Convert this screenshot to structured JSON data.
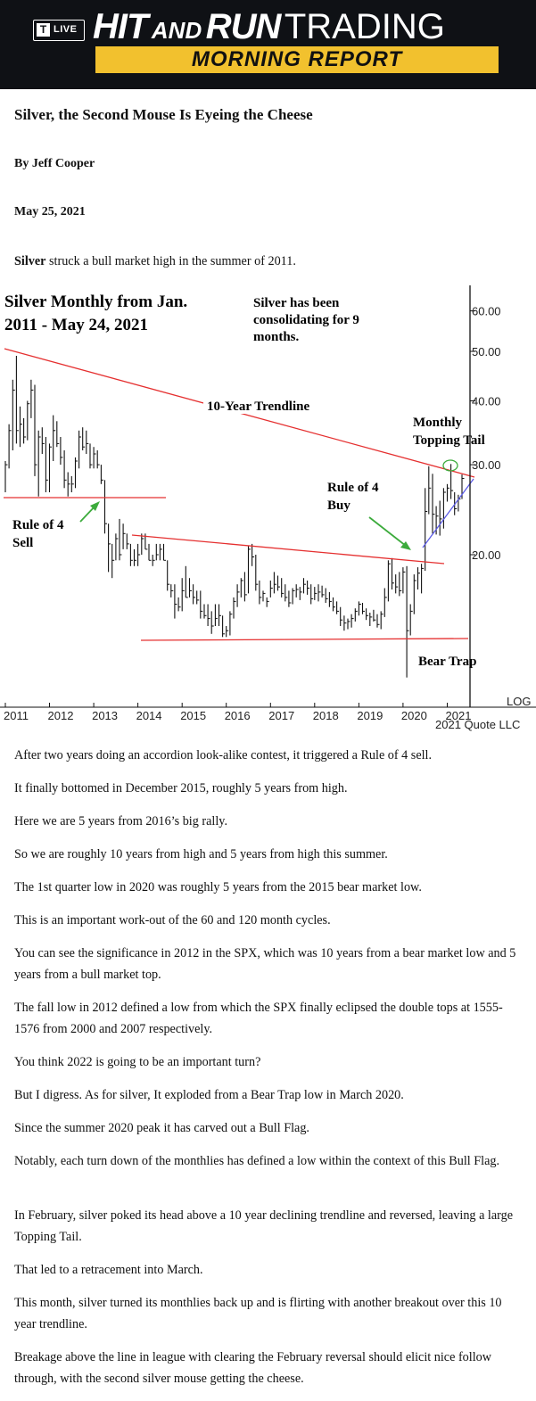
{
  "header": {
    "logo_mark": "T",
    "logo_live": "LIVE",
    "brand_hit": "HIT",
    "brand_and": "AND",
    "brand_run": "RUN",
    "brand_trading": "TRADING",
    "subtitle": "MORNING REPORT",
    "bg_color": "#0f1115",
    "accent_color": "#f2c12e"
  },
  "article": {
    "title": "Silver, the Second Mouse Is Eyeing the Cheese",
    "author": "By Jeff Cooper",
    "date": "May 25, 2021",
    "intro_bold": "Silver",
    "intro_rest": " struck a bull market high in the summer of 2011.",
    "paragraphs": [
      "After two years doing an accordion look-alike contest, it triggered a Rule of 4 sell.",
      "It finally bottomed in December 2015, roughly 5 years from high.",
      "Here we are 5 years from 2016’s big rally.",
      "So we are roughly 10 years from high and 5 years from high this summer.",
      "The 1st quarter low in 2020 was roughly 5 years from the 2015 bear market low.",
      "This is an important work-out of the 60 and 120 month cycles.",
      "You can see the significance in 2012 in the SPX, which was 10 years from a bear market low and 5 years from a bull market top.",
      "The fall low in 2012 defined a low from which the SPX finally eclipsed the double tops at 1555-1576 from 2000 and 2007 respectively.",
      "You think 2022 is going to be an important turn?",
      "But I digress. As for silver, It exploded from a Bear Trap low in March 2020.",
      "Since the summer 2020 peak it has carved out a Bull Flag.",
      "Notably, each turn down of the monthlies has defined a low within the context of this Bull Flag.",
      "In February, silver poked its head above a 10 year declining trendline and reversed, leaving a large Topping Tail.",
      "That led to a retracement into March.",
      "This month, silver turned its monthlies back up and is flirting with another breakout over this 10 year trendline.",
      "Breakage above the line in league with clearing the February reversal should elicit nice follow through, with the second silver mouse getting the cheese."
    ]
  },
  "chart_data": {
    "type": "bar",
    "title_line1": "Silver Monthly from Jan.",
    "title_line2": "2011 - May 24, 2021",
    "note_line1": "Silver has been",
    "note_line2": "consolidating for 9",
    "note_line3": "months.",
    "x_ticks": [
      "2011",
      "2012",
      "2013",
      "2014",
      "2015",
      "2016",
      "2017",
      "2018",
      "2019",
      "2020",
      "2021"
    ],
    "y_ticks": [
      "60.00",
      "50.00",
      "40.00",
      "30.00",
      "20.00"
    ],
    "y_values": [
      60,
      50,
      40,
      30,
      20
    ],
    "scale": "LOG",
    "source": "2021 Quote LLC",
    "annotations": {
      "trendline": "10-Year Trendline",
      "topping_tail_1": "Monthly",
      "topping_tail_2": "Topping Tail",
      "rule4_buy_1": "Rule of 4",
      "rule4_buy_2": "Buy",
      "rule4_sell_1": "Rule of 4",
      "rule4_sell_2": "Sell",
      "bear_trap": "Bear Trap"
    },
    "trendline_color": "#e53030",
    "flag_line_color": "#5a5ae6",
    "arrow_color": "#3cab3c",
    "bars": [
      [
        30.5,
        26.5,
        30
      ],
      [
        36,
        29.5,
        35
      ],
      [
        44,
        32,
        42
      ],
      [
        49,
        33,
        35
      ],
      [
        39,
        32.5,
        36
      ],
      [
        37,
        33,
        34
      ],
      [
        40,
        33.5,
        39.5
      ],
      [
        44,
        37,
        42
      ],
      [
        43,
        28.5,
        30
      ],
      [
        35,
        26,
        34
      ],
      [
        35.5,
        31.5,
        33
      ],
      [
        34,
        26.5,
        28
      ],
      [
        33,
        26.5,
        32.5
      ],
      [
        37.5,
        30.5,
        35
      ],
      [
        36.5,
        32.5,
        33
      ],
      [
        34,
        30,
        31
      ],
      [
        32,
        27,
        28
      ],
      [
        29,
        26,
        27.5
      ],
      [
        28.5,
        26.5,
        27.5
      ],
      [
        31,
        27,
        30.5
      ],
      [
        35,
        29.5,
        34
      ],
      [
        35.5,
        32,
        32.5
      ],
      [
        35,
        31.5,
        33
      ],
      [
        33,
        29.5,
        30
      ],
      [
        32.5,
        29.5,
        31.5
      ],
      [
        32,
        29.5,
        30
      ],
      [
        30,
        27.5,
        28
      ],
      [
        28,
        22,
        23
      ],
      [
        23,
        18.5,
        21
      ],
      [
        21,
        18,
        19.5
      ],
      [
        22,
        19.5,
        21.5
      ],
      [
        23.5,
        19.5,
        20
      ],
      [
        23,
        20.5,
        22
      ],
      [
        22,
        20.5,
        21
      ],
      [
        21,
        19,
        19.5
      ],
      [
        20.5,
        19,
        19.5
      ],
      [
        21,
        19,
        20
      ],
      [
        22,
        20,
        21.5
      ],
      [
        22,
        20.5,
        20.5
      ],
      [
        21,
        19.5,
        19.5
      ],
      [
        20,
        19,
        19.5
      ],
      [
        21,
        19.5,
        20
      ],
      [
        21,
        19.5,
        20.5
      ],
      [
        21,
        19.5,
        19.5
      ],
      [
        19.5,
        17,
        17.5
      ],
      [
        17.5,
        16.5,
        17
      ],
      [
        17.5,
        15,
        16
      ],
      [
        16.5,
        15.5,
        15.8
      ],
      [
        18,
        15.5,
        17
      ],
      [
        19,
        16.5,
        16.5
      ],
      [
        18,
        16.5,
        17
      ],
      [
        17.5,
        16,
        16.5
      ],
      [
        17,
        16,
        16.3
      ],
      [
        17,
        15,
        15.5
      ],
      [
        16,
        15,
        15.2
      ],
      [
        16,
        14.5,
        15
      ],
      [
        15.5,
        14,
        14.5
      ],
      [
        16,
        14.5,
        15
      ],
      [
        16,
        14.5,
        15.2
      ],
      [
        15.2,
        13.8,
        14
      ],
      [
        14.5,
        13.8,
        14.2
      ],
      [
        15.5,
        13.9,
        15.3
      ],
      [
        16.5,
        15,
        16.2
      ],
      [
        17.5,
        15.8,
        16.9
      ],
      [
        18,
        16.5,
        17.8
      ],
      [
        18.5,
        16.2,
        16.7
      ],
      [
        20.8,
        16.8,
        20.5
      ],
      [
        21,
        19,
        19.8
      ],
      [
        20,
        17,
        17.5
      ],
      [
        17.8,
        16,
        16.5
      ],
      [
        17,
        16.2,
        16.8
      ],
      [
        16.5,
        15.8,
        16.2
      ],
      [
        17.8,
        16.5,
        17.2
      ],
      [
        18.5,
        16.8,
        17.5
      ],
      [
        18.2,
        17,
        17.3
      ],
      [
        18,
        16.5,
        16.8
      ],
      [
        17.5,
        16.2,
        16.5
      ],
      [
        17,
        15.8,
        16.1
      ],
      [
        17.2,
        16,
        17
      ],
      [
        17.5,
        16.5,
        17.1
      ],
      [
        17.3,
        16.3,
        16.9
      ],
      [
        18,
        16.8,
        17.5
      ],
      [
        17.8,
        16.7,
        17.2
      ],
      [
        17.5,
        16,
        16.4
      ],
      [
        17.3,
        16.3,
        16.8
      ],
      [
        17.5,
        16.2,
        16.9
      ],
      [
        17.4,
        16.5,
        16.7
      ],
      [
        17.2,
        16.1,
        16.4
      ],
      [
        16.9,
        15.8,
        16.2
      ],
      [
        16.5,
        15.5,
        15.8
      ],
      [
        16.2,
        15.3,
        15.5
      ],
      [
        15.8,
        14.5,
        14.9
      ],
      [
        15.2,
        14.2,
        14.7
      ],
      [
        15,
        14.3,
        14.8
      ],
      [
        15.3,
        14.4,
        15
      ],
      [
        15.7,
        14.8,
        15.5
      ],
      [
        16.2,
        15.2,
        16
      ],
      [
        16.1,
        15.3,
        15.5
      ],
      [
        15.7,
        14.9,
        15.2
      ],
      [
        15.4,
        14.5,
        15.1
      ],
      [
        15.6,
        14.8,
        14.9
      ],
      [
        15.3,
        14.4,
        14.6
      ],
      [
        15.5,
        14.3,
        15.3
      ],
      [
        17.2,
        15.1,
        16.5
      ],
      [
        19.5,
        16.2,
        19.2
      ],
      [
        19.7,
        17.1,
        17.6
      ],
      [
        18.3,
        16.8,
        17.3
      ],
      [
        18.5,
        16.6,
        17
      ],
      [
        18.9,
        16.8,
        18.5
      ],
      [
        19,
        11.5,
        14.2
      ],
      [
        16,
        13.9,
        15.5
      ],
      [
        18.3,
        15.3,
        17.8
      ],
      [
        18.9,
        17.1,
        18.4
      ],
      [
        19.2,
        16.8,
        18.8
      ],
      [
        27,
        18.6,
        24.3
      ],
      [
        29.8,
        24,
        27
      ],
      [
        28.8,
        22,
        24
      ],
      [
        24.9,
        21.9,
        23.8
      ],
      [
        25.5,
        21.8,
        23.5
      ],
      [
        27,
        22.5,
        26.5
      ],
      [
        27.5,
        25.4,
        27
      ],
      [
        30.1,
        25.7,
        26.7
      ],
      [
        26.5,
        23.9,
        24.6
      ],
      [
        26.2,
        24.3,
        25.7
      ],
      [
        28.7,
        25.7,
        28.2
      ]
    ]
  }
}
